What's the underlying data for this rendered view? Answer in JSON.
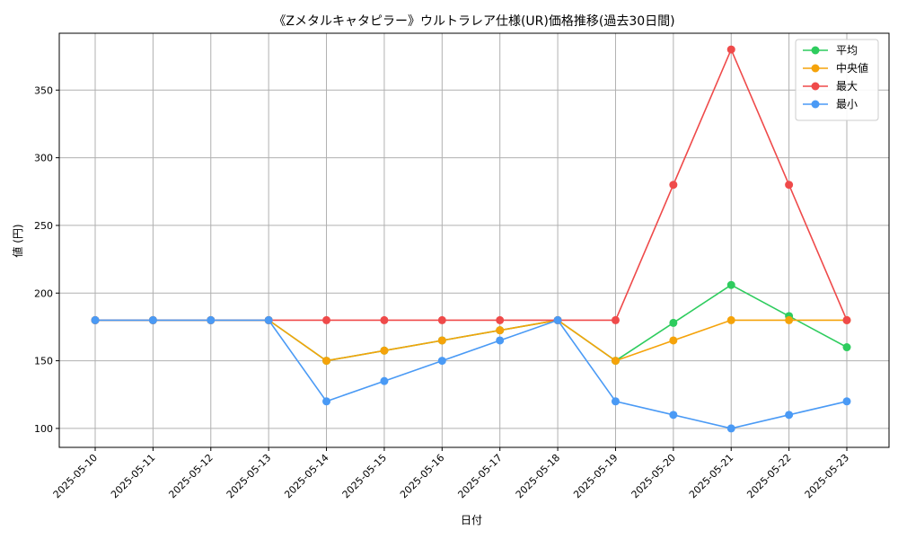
{
  "chart_data": {
    "type": "line",
    "title": "《Zメタルキャタピラー》ウルトラレア仕様(UR)価格推移(過去30日間)",
    "xlabel": "日付",
    "ylabel": "値 (円)",
    "categories": [
      "2025-05-10",
      "2025-05-11",
      "2025-05-12",
      "2025-05-13",
      "2025-05-14",
      "2025-05-15",
      "2025-05-16",
      "2025-05-17",
      "2025-05-18",
      "2025-05-19",
      "2025-05-20",
      "2025-05-21",
      "2025-05-22",
      "2025-05-23"
    ],
    "ylim": [
      86,
      392
    ],
    "yticks": [
      100,
      150,
      200,
      250,
      300,
      350
    ],
    "grid": true,
    "legend_position": "top-right",
    "series": [
      {
        "name": "平均",
        "color": "#2ecc5e",
        "values": [
          180,
          180,
          180,
          180,
          150,
          157.5,
          165,
          172.5,
          180,
          150,
          178,
          206,
          183,
          160
        ]
      },
      {
        "name": "中央値",
        "color": "#f5a30a",
        "values": [
          180,
          180,
          180,
          180,
          150,
          157.5,
          165,
          172.5,
          180,
          150,
          165,
          180,
          180,
          180
        ]
      },
      {
        "name": "最大",
        "color": "#ef4a4a",
        "values": [
          180,
          180,
          180,
          180,
          180,
          180,
          180,
          180,
          180,
          180,
          280,
          380,
          280,
          180
        ]
      },
      {
        "name": "最小",
        "color": "#4a9af5",
        "values": [
          180,
          180,
          180,
          180,
          120,
          135,
          150,
          165,
          180,
          120,
          110,
          100,
          110,
          120
        ]
      }
    ]
  }
}
